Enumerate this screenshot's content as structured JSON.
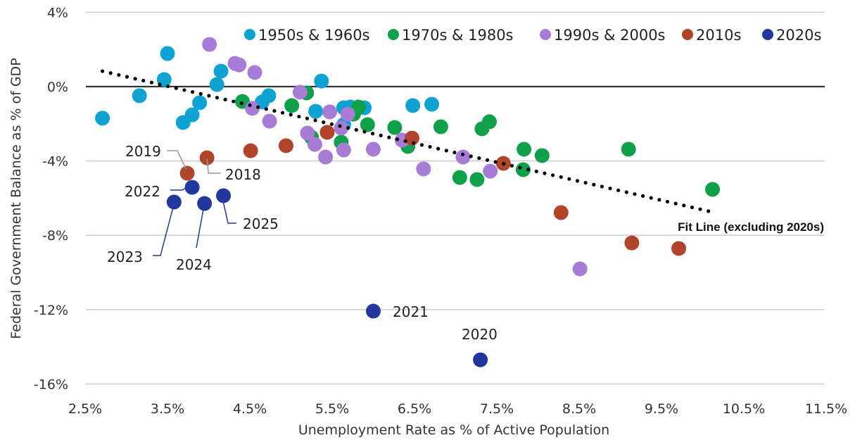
{
  "chart_data": {
    "type": "scatter",
    "title": "",
    "xlabel": "Unemployment Rate as % of Active Population",
    "ylabel": "Federal Government Balance as % of GDP",
    "xlim": [
      2.5,
      11.5
    ],
    "ylim": [
      -16,
      4
    ],
    "x_ticks": [
      2.5,
      3.5,
      4.5,
      5.5,
      6.5,
      7.5,
      8.5,
      9.5,
      10.5,
      11.5
    ],
    "x_tick_labels": [
      "2.5%",
      "3.5%",
      "4.5%",
      "5.5%",
      "6.5%",
      "7.5%",
      "8.5%",
      "9.5%",
      "10.5%",
      "11.5%"
    ],
    "y_ticks": [
      4,
      0,
      -4,
      -8,
      -12,
      -16
    ],
    "y_tick_labels": [
      "4%",
      "0%",
      "-4%",
      "-8%",
      "-12%",
      "-16%"
    ],
    "grid": "horizontal",
    "zero_line": true,
    "legend_position": "top",
    "series": [
      {
        "name": "1950s & 1960s",
        "color": "#0ea3d2",
        "points": [
          [
            2.71,
            -1.7
          ],
          [
            3.16,
            -0.49
          ],
          [
            3.5,
            1.78
          ],
          [
            3.46,
            0.38
          ],
          [
            3.69,
            -1.93
          ],
          [
            3.8,
            -1.52
          ],
          [
            3.89,
            -0.87
          ],
          [
            4.1,
            0.11
          ],
          [
            4.15,
            0.83
          ],
          [
            4.65,
            -0.83
          ],
          [
            4.73,
            -0.49
          ],
          [
            5.37,
            0.3
          ],
          [
            5.3,
            -1.33
          ],
          [
            5.64,
            -1.14
          ],
          [
            5.72,
            -1.1
          ],
          [
            5.89,
            -1.14
          ],
          [
            5.64,
            -2.05
          ],
          [
            6.48,
            -1.02
          ],
          [
            6.71,
            -0.95
          ]
        ]
      },
      {
        "name": "1970s & 1980s",
        "color": "#0fa14a",
        "points": [
          [
            4.41,
            -0.8
          ],
          [
            5.19,
            -0.34
          ],
          [
            5.01,
            -1.02
          ],
          [
            5.82,
            -1.1
          ],
          [
            5.76,
            -1.48
          ],
          [
            5.25,
            -2.73
          ],
          [
            5.61,
            -2.99
          ],
          [
            5.93,
            -2.05
          ],
          [
            6.26,
            -2.2
          ],
          [
            6.82,
            -2.16
          ],
          [
            6.42,
            -3.22
          ],
          [
            7.05,
            -4.89
          ],
          [
            7.26,
            -5.0
          ],
          [
            7.41,
            -1.89
          ],
          [
            7.32,
            -2.27
          ],
          [
            7.83,
            -3.37
          ],
          [
            8.05,
            -3.71
          ],
          [
            7.82,
            -4.47
          ],
          [
            9.1,
            -3.37
          ],
          [
            10.12,
            -5.53
          ]
        ]
      },
      {
        "name": "1990s & 2000s",
        "color": "#a77bd6",
        "points": [
          [
            4.01,
            2.27
          ],
          [
            4.32,
            1.25
          ],
          [
            4.37,
            1.17
          ],
          [
            4.56,
            0.76
          ],
          [
            4.53,
            -1.17
          ],
          [
            4.74,
            -1.86
          ],
          [
            5.11,
            -0.3
          ],
          [
            5.47,
            -1.36
          ],
          [
            5.69,
            -1.48
          ],
          [
            5.61,
            -2.23
          ],
          [
            5.2,
            -2.5
          ],
          [
            5.29,
            -3.11
          ],
          [
            5.42,
            -3.79
          ],
          [
            5.64,
            -3.41
          ],
          [
            6.0,
            -3.37
          ],
          [
            6.35,
            -2.88
          ],
          [
            6.61,
            -4.43
          ],
          [
            7.09,
            -3.79
          ],
          [
            7.42,
            -4.55
          ],
          [
            8.51,
            -9.81
          ]
        ]
      },
      {
        "name": "2010s",
        "color": "#b0452c",
        "points": [
          [
            3.74,
            -4.66
          ],
          [
            3.98,
            -3.83
          ],
          [
            4.51,
            -3.45
          ],
          [
            4.94,
            -3.18
          ],
          [
            5.44,
            -2.46
          ],
          [
            6.47,
            -2.77
          ],
          [
            7.58,
            -4.13
          ],
          [
            8.28,
            -6.78
          ],
          [
            9.14,
            -8.41
          ],
          [
            9.71,
            -8.71
          ]
        ]
      },
      {
        "name": "2020s",
        "color": "#22389e",
        "points": [
          [
            7.3,
            -14.7
          ],
          [
            6.0,
            -12.08
          ],
          [
            3.8,
            -5.42
          ],
          [
            3.58,
            -6.21
          ],
          [
            3.95,
            -6.29
          ],
          [
            4.18,
            -5.87
          ]
        ]
      }
    ],
    "annotations": [
      {
        "text": "2019",
        "x": 3.74,
        "y": -4.66,
        "series": "2010s"
      },
      {
        "text": "2018",
        "x": 3.98,
        "y": -3.83,
        "series": "2010s"
      },
      {
        "text": "2022",
        "x": 3.8,
        "y": -5.42,
        "series": "2020s"
      },
      {
        "text": "2023",
        "x": 3.58,
        "y": -6.21,
        "series": "2020s"
      },
      {
        "text": "2024",
        "x": 3.95,
        "y": -6.29,
        "series": "2020s"
      },
      {
        "text": "2025",
        "x": 4.18,
        "y": -5.87,
        "series": "2020s"
      },
      {
        "text": "2021",
        "x": 6.0,
        "y": -12.08,
        "series": "2020s"
      },
      {
        "text": "2020",
        "x": 7.3,
        "y": -14.7,
        "series": "2020s"
      }
    ],
    "fit_line": {
      "label": "Fit Line (excluding 2020s)",
      "start": [
        2.71,
        0.83
      ],
      "end": [
        10.07,
        -6.7
      ],
      "style": "dotted",
      "color": "#000000"
    }
  }
}
